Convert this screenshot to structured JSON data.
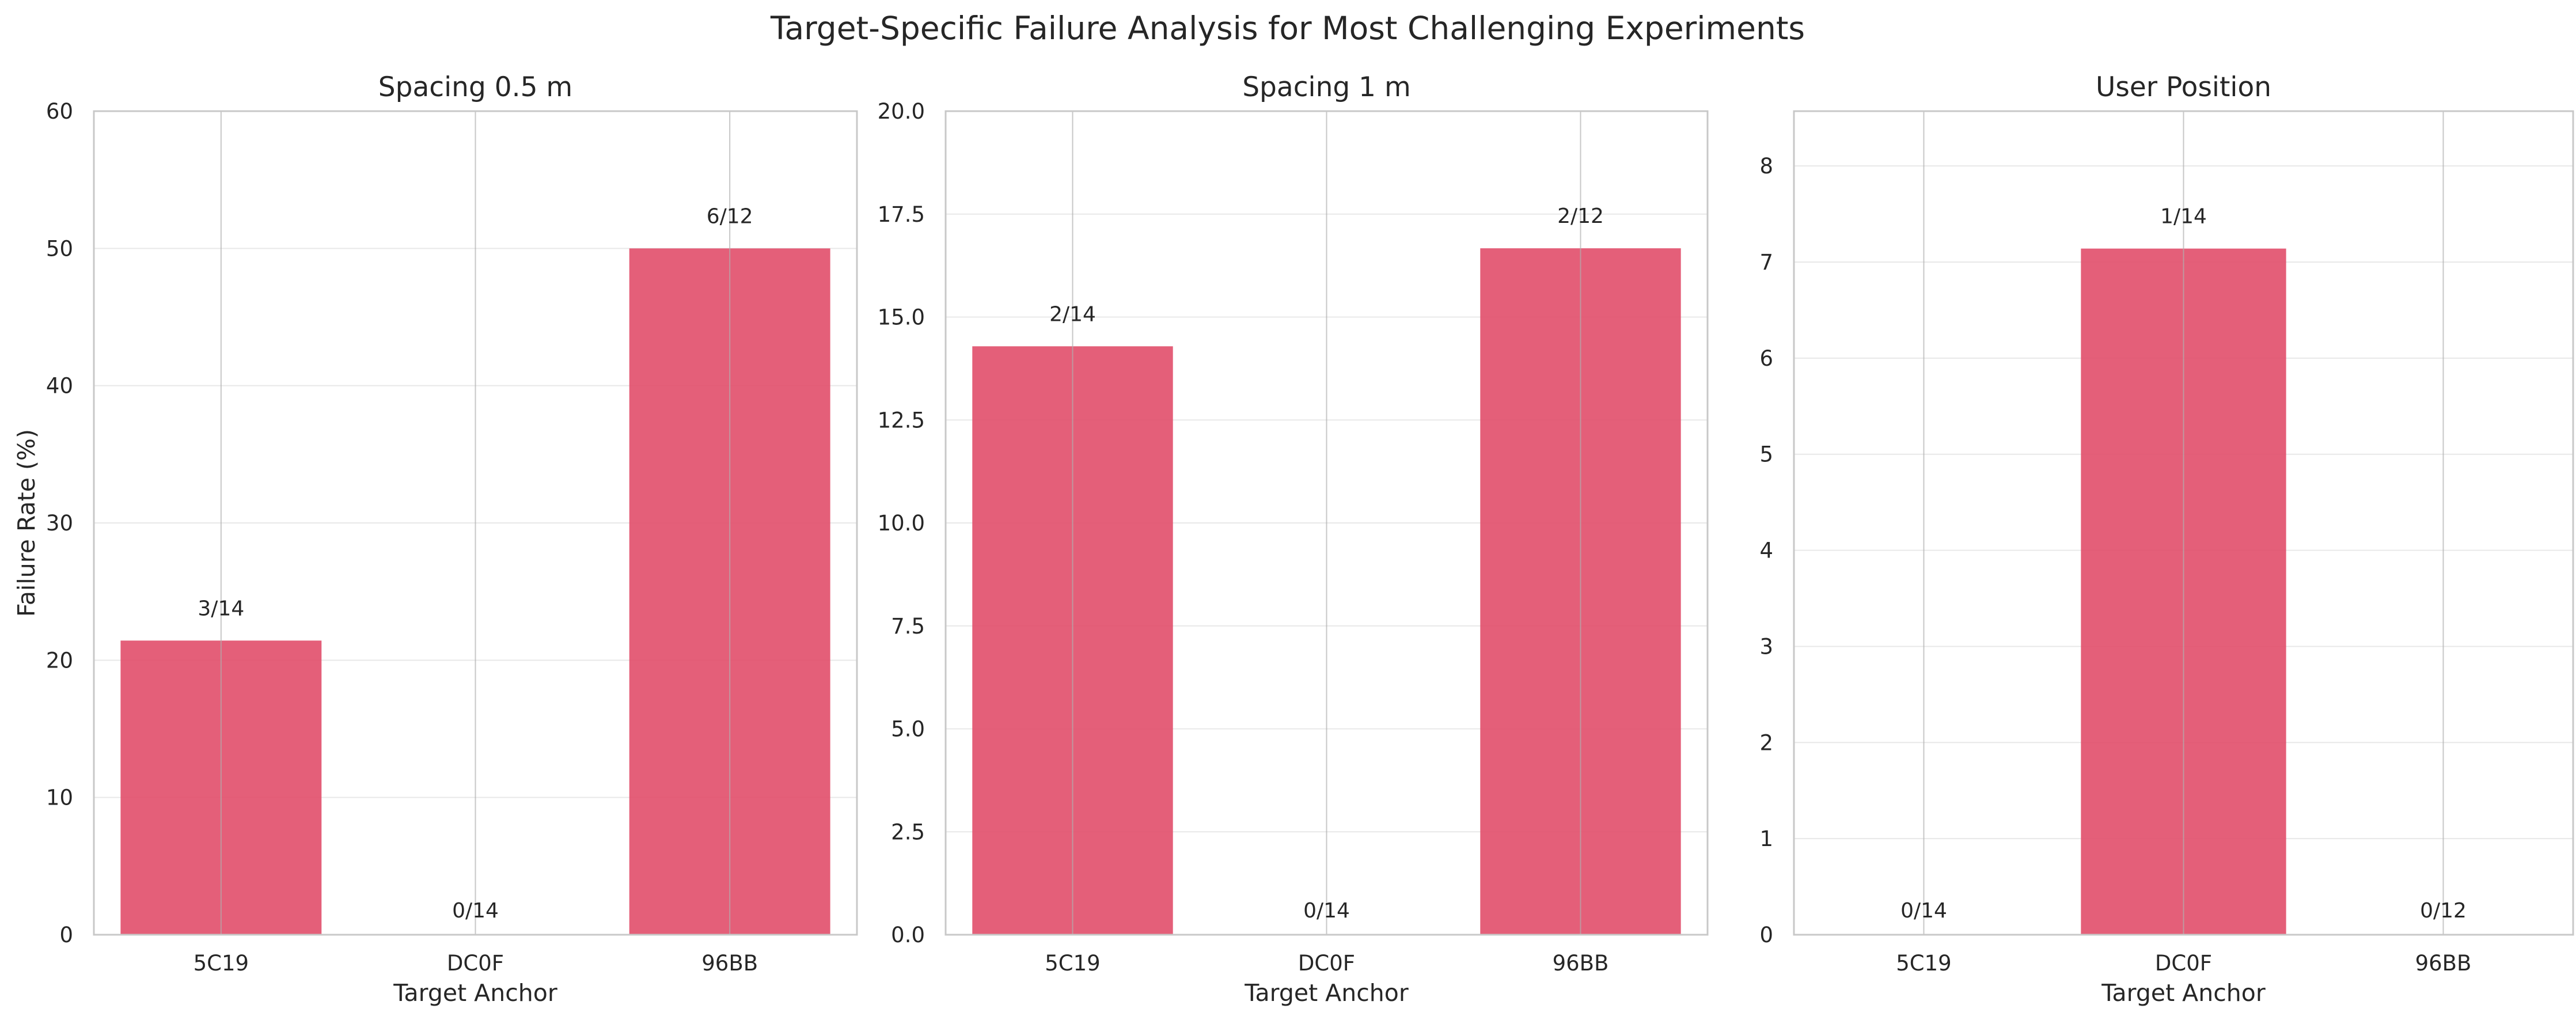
{
  "figure": {
    "suptitle": "Target-Specific Failure Analysis for Most Challenging Experiments"
  },
  "colors": {
    "bar": "#e14e6a",
    "bar_opacity": 0.9,
    "grid": "#d9d9d9",
    "frame": "#c8c8c8",
    "text": "#262626"
  },
  "chart_data": [
    {
      "type": "bar",
      "title": "Spacing 0.5 m",
      "xlabel": "Target Anchor",
      "ylabel": "Failure Rate (%)",
      "categories": [
        "5C19",
        "DC0F",
        "96BB"
      ],
      "values": [
        21.43,
        0,
        50
      ],
      "bar_labels": [
        "3/14",
        "0/14",
        "6/12"
      ],
      "ylim": [
        0,
        60
      ],
      "yticks": [
        0,
        10,
        20,
        30,
        40,
        50,
        60
      ],
      "ytick_labels": [
        "0",
        "10",
        "20",
        "30",
        "40",
        "50",
        "60"
      ],
      "grid": true
    },
    {
      "type": "bar",
      "title": "Spacing 1 m",
      "xlabel": "Target Anchor",
      "ylabel": "",
      "categories": [
        "5C19",
        "DC0F",
        "96BB"
      ],
      "values": [
        14.29,
        0,
        16.67
      ],
      "bar_labels": [
        "2/14",
        "0/14",
        "2/12"
      ],
      "ylim": [
        0,
        20
      ],
      "yticks": [
        0,
        2.5,
        5,
        7.5,
        10,
        12.5,
        15,
        17.5,
        20
      ],
      "ytick_labels": [
        "0.0",
        "2.5",
        "5.0",
        "7.5",
        "10.0",
        "12.5",
        "15.0",
        "17.5",
        "20.0"
      ],
      "grid": true
    },
    {
      "type": "bar",
      "title": "User Position",
      "xlabel": "Target Anchor",
      "ylabel": "",
      "categories": [
        "5C19",
        "DC0F",
        "96BB"
      ],
      "values": [
        0,
        7.14,
        0
      ],
      "bar_labels": [
        "0/14",
        "1/14",
        "0/12"
      ],
      "ylim": [
        0,
        8.57
      ],
      "yticks": [
        0,
        1,
        2,
        3,
        4,
        5,
        6,
        7,
        8
      ],
      "ytick_labels": [
        "0",
        "1",
        "2",
        "3",
        "4",
        "5",
        "6",
        "7",
        "8"
      ],
      "grid": true
    }
  ]
}
